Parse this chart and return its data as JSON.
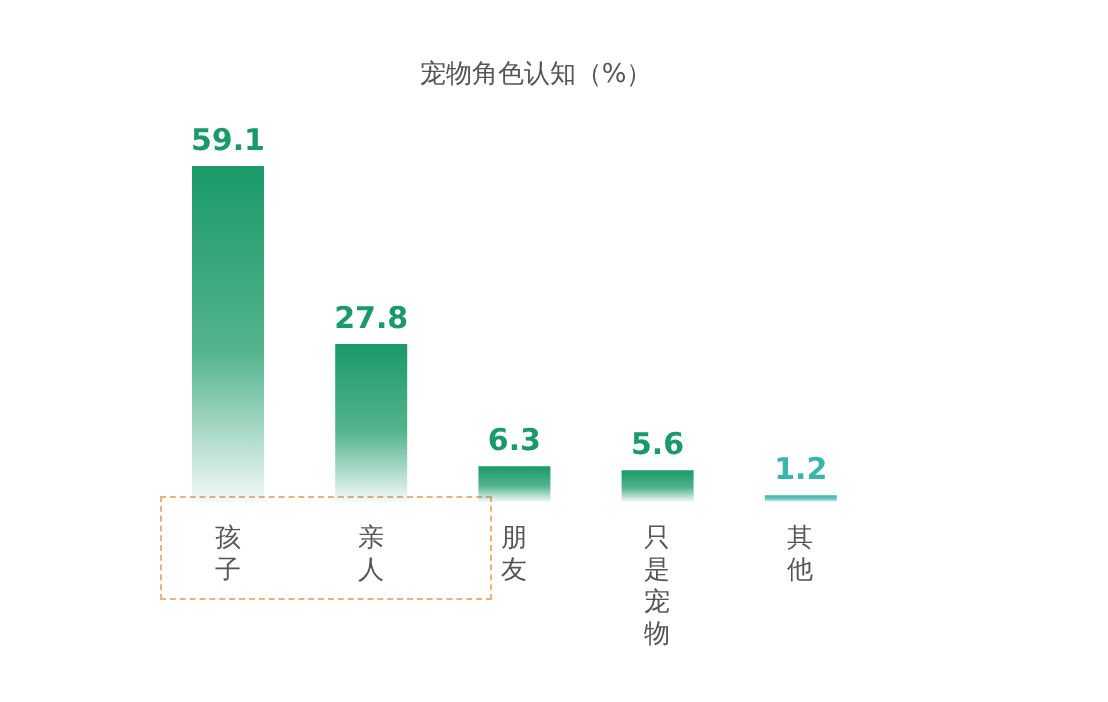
{
  "chart_data": {
    "type": "bar",
    "title": "宠物角色认知（%）",
    "categories": [
      "孩子",
      "亲人",
      "朋友",
      "只是宠物",
      "其他"
    ],
    "values": [
      59.1,
      27.8,
      6.3,
      5.6,
      1.2
    ],
    "colors": [
      "#1a9a68",
      "#1a9a68",
      "#1a9a68",
      "#1a9a68",
      "#3ab5a9"
    ],
    "data_labels": true
  }
}
